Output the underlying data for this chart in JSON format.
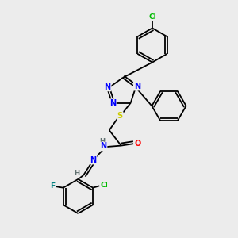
{
  "background_color": "#ececec",
  "atom_colors": {
    "N": "#0000ff",
    "O": "#ff0000",
    "S": "#cccc00",
    "F": "#008080",
    "Cl": "#00bb00",
    "C": "#000000",
    "H": "#607070"
  },
  "bond_color": "#000000",
  "figsize": [
    3.0,
    3.0
  ],
  "dpi": 100
}
